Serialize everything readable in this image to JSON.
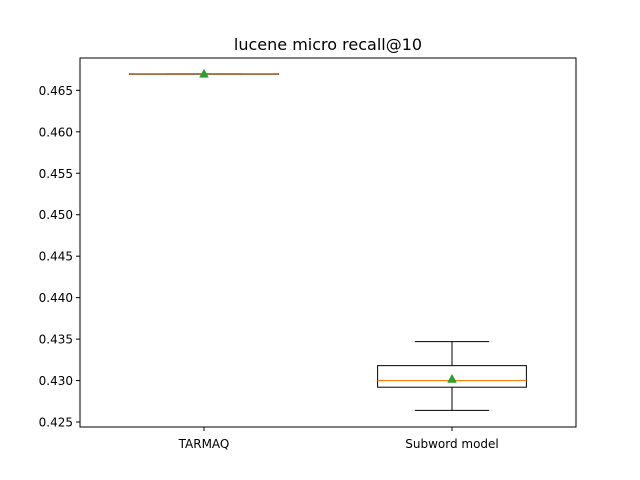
{
  "chart_data": {
    "type": "box",
    "title": "lucene micro recall@10",
    "xlabel": "",
    "ylabel": "",
    "categories": [
      "TARMAQ",
      "Subword model"
    ],
    "ylim": [
      0.4244,
      0.4689
    ],
    "yticks": [
      0.425,
      0.43,
      0.435,
      0.44,
      0.445,
      0.45,
      0.455,
      0.46,
      0.465
    ],
    "ytick_labels": [
      "0.425",
      "0.430",
      "0.435",
      "0.440",
      "0.445",
      "0.450",
      "0.455",
      "0.460",
      "0.465"
    ],
    "grid": false,
    "boxes": [
      {
        "category": "TARMAQ",
        "whisker_low": 0.467,
        "q1": 0.467,
        "median": 0.467,
        "q3": 0.467,
        "whisker_high": 0.467,
        "mean": 0.467
      },
      {
        "category": "Subword model",
        "whisker_low": 0.4264,
        "q1": 0.4292,
        "median": 0.43,
        "q3": 0.4318,
        "whisker_high": 0.4347,
        "mean": 0.4302
      }
    ],
    "colors": {
      "box": "#000000",
      "median": "#ff7f0e",
      "mean_marker": "#2ca02c"
    }
  }
}
